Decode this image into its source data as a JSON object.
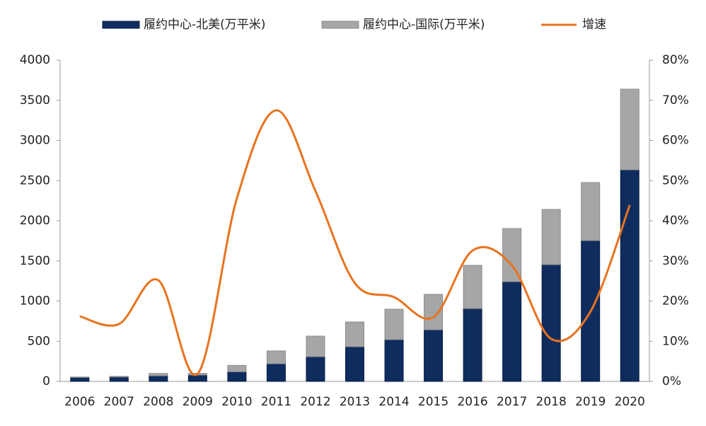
{
  "chart_data": {
    "type": "bar",
    "categories": [
      "2006",
      "2007",
      "2008",
      "2009",
      "2010",
      "2011",
      "2012",
      "2013",
      "2014",
      "2015",
      "2016",
      "2017",
      "2018",
      "2019",
      "2020"
    ],
    "series": [
      {
        "name": "履约中心-北美(万平米)",
        "color": "#0e2c5e",
        "values": [
          50,
          55,
          70,
          80,
          120,
          220,
          308,
          432,
          520,
          643,
          907,
          1242,
          1454,
          1753,
          2634
        ]
      },
      {
        "name": "履约中心-国际(万平米)",
        "color": "#a6a6a6",
        "values": [
          5,
          8,
          30,
          20,
          80,
          160,
          256,
          308,
          379,
          441,
          538,
          661,
          687,
          723,
          1005
        ]
      },
      {
        "name": "增速",
        "color": "#e8731f",
        "axis": "y2",
        "values": [
          16.2,
          14.3,
          25.2,
          1.9,
          45.6,
          67.5,
          47.4,
          24.5,
          21.0,
          16.0,
          32.6,
          28.9,
          10.6,
          17.4,
          43.9
        ]
      }
    ],
    "ylim": [
      0,
      4000
    ],
    "yticks": [
      0,
      500,
      1000,
      1500,
      2000,
      2500,
      3000,
      3500,
      4000
    ],
    "y2lim": [
      0,
      80
    ],
    "y2ticks": [
      {
        "value": 0,
        "label": "0%"
      },
      {
        "value": 10,
        "label": "10%"
      },
      {
        "value": 20,
        "label": "20%"
      },
      {
        "value": 30,
        "label": "30%"
      },
      {
        "value": 40,
        "label": "40%"
      },
      {
        "value": 50,
        "label": "50%"
      },
      {
        "value": 60,
        "label": "60%"
      },
      {
        "value": 70,
        "label": "70%"
      },
      {
        "value": 80,
        "label": "80%"
      }
    ],
    "legend": "top",
    "grid": false
  }
}
